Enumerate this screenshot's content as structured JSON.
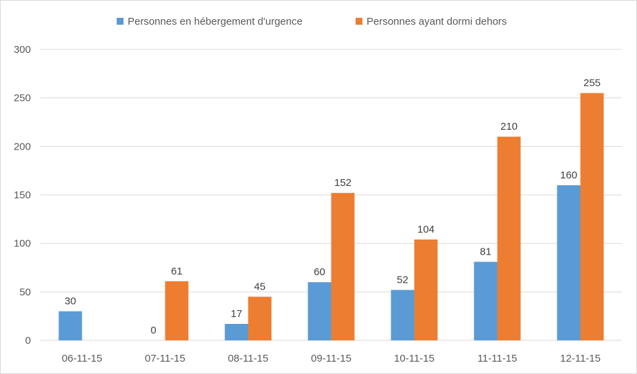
{
  "chart_data": {
    "type": "bar",
    "categories": [
      "06-11-15",
      "07-11-15",
      "08-11-15",
      "09-11-15",
      "10-11-15",
      "11-11-15",
      "12-11-15"
    ],
    "series": [
      {
        "name": "Personnes en hébergement d'urgence",
        "color": "#5b9bd5",
        "values": [
          30,
          0,
          17,
          60,
          52,
          81,
          160
        ],
        "labels": [
          "30",
          "0",
          "17",
          "60",
          "52",
          "81",
          "160"
        ]
      },
      {
        "name": "Personnes ayant dormi dehors",
        "color": "#ed7d31",
        "values": [
          null,
          61,
          45,
          152,
          104,
          210,
          255
        ],
        "labels": [
          "",
          "61",
          "45",
          "152",
          "104",
          "210",
          "255"
        ]
      }
    ],
    "title": "",
    "xlabel": "",
    "ylabel": "",
    "ylim": [
      0,
      300
    ],
    "yticks": [
      0,
      50,
      100,
      150,
      200,
      250,
      300
    ],
    "ytick_labels": [
      "0",
      "50",
      "100",
      "150",
      "200",
      "250",
      "300"
    ],
    "grid": true,
    "legend_position": "top"
  }
}
